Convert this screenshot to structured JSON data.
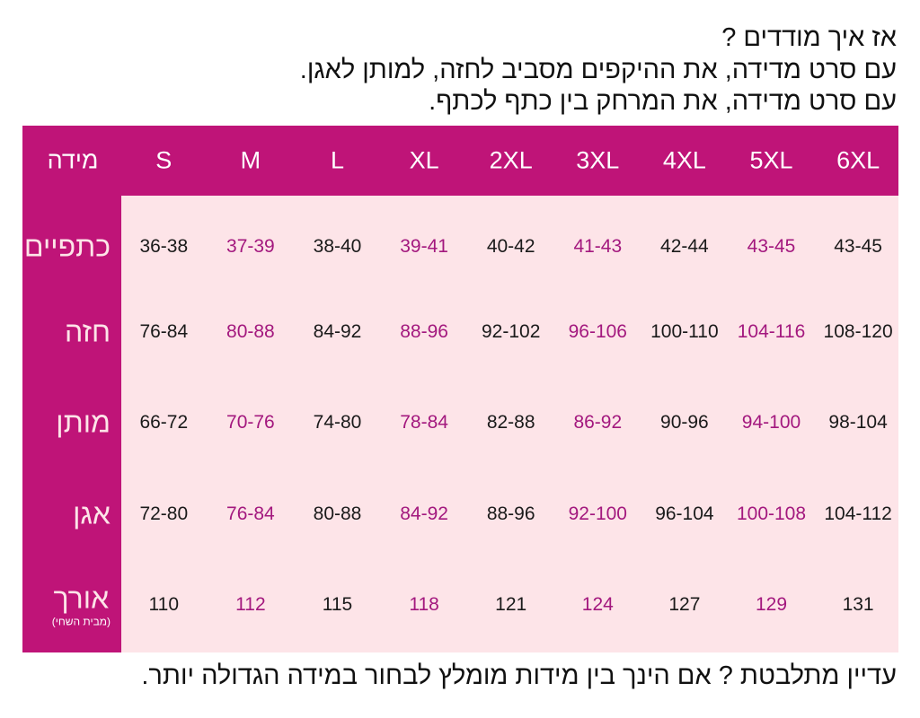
{
  "header": {
    "lines": [
      "אז איך מודדים ?",
      "עם סרט מדידה, את ההיקפים מסביב לחזה, למותן לאגן.",
      "עם סרט מדידה, את המרחק בין כתף לכתף."
    ]
  },
  "table": {
    "corner": "מידה",
    "sizes": [
      "S",
      "M",
      "L",
      "XL",
      "2XL",
      "3XL",
      "4XL",
      "5XL",
      "6XL"
    ],
    "rows": [
      {
        "label": "כתפיים",
        "values": [
          "36-38",
          "37-39",
          "38-40",
          "39-41",
          "40-42",
          "41-43",
          "42-44",
          "43-45",
          "43-45"
        ]
      },
      {
        "label": "חזה",
        "values": [
          "76-84",
          "80-88",
          "84-92",
          "88-96",
          "92-102",
          "96-106",
          "100-110",
          "104-116",
          "108-120"
        ]
      },
      {
        "label": "מותן",
        "values": [
          "66-72",
          "70-76",
          "74-80",
          "78-84",
          "82-88",
          "86-92",
          "90-96",
          "94-100",
          "98-104"
        ]
      },
      {
        "label": "אגן",
        "values": [
          "72-80",
          "76-84",
          "80-88",
          "84-92",
          "88-96",
          "92-100",
          "96-104",
          "100-108",
          "104-112"
        ]
      },
      {
        "label": "אורך",
        "sublabel": "(מבית השחי)",
        "values": [
          "110",
          "112",
          "115",
          "118",
          "121",
          "124",
          "127",
          "129",
          "131"
        ]
      }
    ]
  },
  "footer": "עדיין מתלבטת ? אם הינך בין מידות מומלץ לבחור במידה הגדולה יותר."
}
